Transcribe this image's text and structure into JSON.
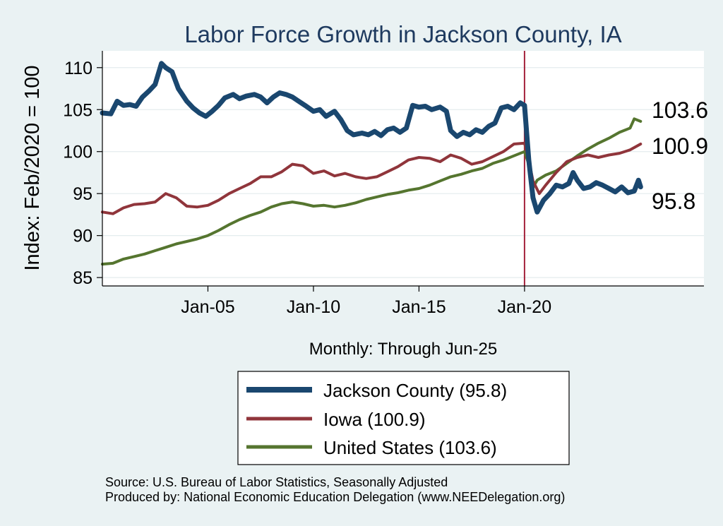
{
  "chart_data": {
    "type": "line",
    "title": "Labor Force Growth in Jackson  County, IA",
    "xlabel": "Monthly: Through Jun-25",
    "ylabel": "Index: Feb/2020 = 100",
    "ylim": [
      84,
      112
    ],
    "yticks": [
      85,
      90,
      95,
      100,
      105,
      110
    ],
    "xlim": [
      "2000-01",
      "2028-06"
    ],
    "xticks": [
      {
        "label": "Jan-05",
        "value": 2005.0
      },
      {
        "label": "Jan-10",
        "value": 2010.0
      },
      {
        "label": "Jan-15",
        "value": 2015.0
      },
      {
        "label": "Jan-20",
        "value": 2020.0
      }
    ],
    "reference_line": {
      "x": 2020.0,
      "color": "#a3203a"
    },
    "grid": true,
    "legend_position": "bottom",
    "series": [
      {
        "name": "Jackson  County",
        "legend_label": "Jackson  County (95.8)",
        "end_label": "95.8",
        "color": "#1a476f",
        "points": [
          [
            2000.0,
            104.6
          ],
          [
            2000.4,
            104.5
          ],
          [
            2000.7,
            106.0
          ],
          [
            2001.0,
            105.5
          ],
          [
            2001.3,
            105.6
          ],
          [
            2001.6,
            105.4
          ],
          [
            2001.9,
            106.5
          ],
          [
            2002.2,
            107.2
          ],
          [
            2002.5,
            108.0
          ],
          [
            2002.8,
            110.5
          ],
          [
            2003.0,
            110.0
          ],
          [
            2003.3,
            109.5
          ],
          [
            2003.6,
            107.5
          ],
          [
            2004.0,
            106.0
          ],
          [
            2004.3,
            105.2
          ],
          [
            2004.6,
            104.6
          ],
          [
            2004.9,
            104.2
          ],
          [
            2005.2,
            104.8
          ],
          [
            2005.5,
            105.5
          ],
          [
            2005.8,
            106.4
          ],
          [
            2006.2,
            106.8
          ],
          [
            2006.5,
            106.3
          ],
          [
            2006.8,
            106.6
          ],
          [
            2007.2,
            106.8
          ],
          [
            2007.5,
            106.5
          ],
          [
            2007.8,
            105.8
          ],
          [
            2008.1,
            106.5
          ],
          [
            2008.4,
            107.0
          ],
          [
            2008.7,
            106.8
          ],
          [
            2009.0,
            106.5
          ],
          [
            2009.3,
            106.0
          ],
          [
            2009.6,
            105.5
          ],
          [
            2010.0,
            104.8
          ],
          [
            2010.3,
            105.0
          ],
          [
            2010.6,
            104.2
          ],
          [
            2011.0,
            104.8
          ],
          [
            2011.3,
            103.8
          ],
          [
            2011.6,
            102.5
          ],
          [
            2011.9,
            102.0
          ],
          [
            2012.3,
            102.2
          ],
          [
            2012.6,
            102.0
          ],
          [
            2012.9,
            102.4
          ],
          [
            2013.2,
            101.9
          ],
          [
            2013.5,
            102.6
          ],
          [
            2013.8,
            102.8
          ],
          [
            2014.1,
            102.3
          ],
          [
            2014.4,
            102.8
          ],
          [
            2014.7,
            105.5
          ],
          [
            2015.0,
            105.3
          ],
          [
            2015.3,
            105.4
          ],
          [
            2015.6,
            105.0
          ],
          [
            2016.0,
            105.3
          ],
          [
            2016.3,
            104.8
          ],
          [
            2016.5,
            102.5
          ],
          [
            2016.8,
            101.8
          ],
          [
            2017.1,
            102.3
          ],
          [
            2017.4,
            102.0
          ],
          [
            2017.7,
            102.6
          ],
          [
            2018.0,
            102.3
          ],
          [
            2018.3,
            103.0
          ],
          [
            2018.6,
            103.4
          ],
          [
            2018.9,
            105.2
          ],
          [
            2019.2,
            105.4
          ],
          [
            2019.5,
            105.0
          ],
          [
            2019.8,
            105.8
          ],
          [
            2020.0,
            105.5
          ],
          [
            2020.2,
            99.0
          ],
          [
            2020.4,
            94.5
          ],
          [
            2020.6,
            92.8
          ],
          [
            2020.9,
            94.2
          ],
          [
            2021.2,
            95.0
          ],
          [
            2021.5,
            96.0
          ],
          [
            2021.8,
            95.8
          ],
          [
            2022.1,
            96.2
          ],
          [
            2022.3,
            97.5
          ],
          [
            2022.5,
            96.6
          ],
          [
            2022.8,
            95.6
          ],
          [
            2023.1,
            95.8
          ],
          [
            2023.4,
            96.3
          ],
          [
            2023.7,
            96.0
          ],
          [
            2024.0,
            95.6
          ],
          [
            2024.3,
            95.2
          ],
          [
            2024.6,
            95.8
          ],
          [
            2024.9,
            95.1
          ],
          [
            2025.2,
            95.3
          ],
          [
            2025.4,
            96.6
          ],
          [
            2025.5,
            95.8
          ]
        ]
      },
      {
        "name": "Iowa",
        "legend_label": "Iowa (100.9)",
        "end_label": "100.9",
        "color": "#90353b",
        "points": [
          [
            2000.0,
            92.8
          ],
          [
            2000.5,
            92.6
          ],
          [
            2001.0,
            93.3
          ],
          [
            2001.5,
            93.7
          ],
          [
            2002.0,
            93.8
          ],
          [
            2002.5,
            94.0
          ],
          [
            2003.0,
            95.0
          ],
          [
            2003.5,
            94.5
          ],
          [
            2004.0,
            93.5
          ],
          [
            2004.5,
            93.4
          ],
          [
            2005.0,
            93.6
          ],
          [
            2005.5,
            94.2
          ],
          [
            2006.0,
            95.0
          ],
          [
            2006.5,
            95.6
          ],
          [
            2007.0,
            96.2
          ],
          [
            2007.5,
            97.0
          ],
          [
            2008.0,
            97.0
          ],
          [
            2008.5,
            97.6
          ],
          [
            2009.0,
            98.5
          ],
          [
            2009.5,
            98.3
          ],
          [
            2010.0,
            97.4
          ],
          [
            2010.5,
            97.7
          ],
          [
            2011.0,
            97.1
          ],
          [
            2011.5,
            97.4
          ],
          [
            2012.0,
            97.0
          ],
          [
            2012.5,
            96.8
          ],
          [
            2013.0,
            97.0
          ],
          [
            2013.5,
            97.6
          ],
          [
            2014.0,
            98.2
          ],
          [
            2014.5,
            99.0
          ],
          [
            2015.0,
            99.3
          ],
          [
            2015.5,
            99.2
          ],
          [
            2016.0,
            98.8
          ],
          [
            2016.5,
            99.6
          ],
          [
            2017.0,
            99.2
          ],
          [
            2017.5,
            98.5
          ],
          [
            2018.0,
            98.8
          ],
          [
            2018.5,
            99.4
          ],
          [
            2019.0,
            100.0
          ],
          [
            2019.5,
            100.9
          ],
          [
            2020.0,
            101.0
          ],
          [
            2020.2,
            99.0
          ],
          [
            2020.4,
            96.5
          ],
          [
            2020.7,
            95.0
          ],
          [
            2021.0,
            96.0
          ],
          [
            2021.5,
            97.5
          ],
          [
            2022.0,
            98.8
          ],
          [
            2022.5,
            99.3
          ],
          [
            2023.0,
            99.6
          ],
          [
            2023.5,
            99.3
          ],
          [
            2024.0,
            99.6
          ],
          [
            2024.5,
            99.8
          ],
          [
            2025.0,
            100.2
          ],
          [
            2025.5,
            100.9
          ]
        ]
      },
      {
        "name": "United States",
        "legend_label": "United States (103.6)",
        "end_label": "103.6",
        "color": "#55752f",
        "points": [
          [
            2000.0,
            86.6
          ],
          [
            2000.5,
            86.7
          ],
          [
            2001.0,
            87.2
          ],
          [
            2001.5,
            87.5
          ],
          [
            2002.0,
            87.8
          ],
          [
            2002.5,
            88.2
          ],
          [
            2003.0,
            88.6
          ],
          [
            2003.5,
            89.0
          ],
          [
            2004.0,
            89.3
          ],
          [
            2004.5,
            89.6
          ],
          [
            2005.0,
            90.0
          ],
          [
            2005.5,
            90.6
          ],
          [
            2006.0,
            91.3
          ],
          [
            2006.5,
            91.9
          ],
          [
            2007.0,
            92.4
          ],
          [
            2007.5,
            92.8
          ],
          [
            2008.0,
            93.4
          ],
          [
            2008.5,
            93.8
          ],
          [
            2009.0,
            94.0
          ],
          [
            2009.5,
            93.8
          ],
          [
            2010.0,
            93.5
          ],
          [
            2010.5,
            93.6
          ],
          [
            2011.0,
            93.4
          ],
          [
            2011.5,
            93.6
          ],
          [
            2012.0,
            93.9
          ],
          [
            2012.5,
            94.3
          ],
          [
            2013.0,
            94.6
          ],
          [
            2013.5,
            94.9
          ],
          [
            2014.0,
            95.1
          ],
          [
            2014.5,
            95.4
          ],
          [
            2015.0,
            95.6
          ],
          [
            2015.5,
            96.0
          ],
          [
            2016.0,
            96.5
          ],
          [
            2016.5,
            97.0
          ],
          [
            2017.0,
            97.3
          ],
          [
            2017.5,
            97.7
          ],
          [
            2018.0,
            98.0
          ],
          [
            2018.5,
            98.6
          ],
          [
            2019.0,
            99.0
          ],
          [
            2019.5,
            99.5
          ],
          [
            2020.0,
            100.0
          ],
          [
            2020.2,
            98.5
          ],
          [
            2020.35,
            95.5
          ],
          [
            2020.6,
            96.6
          ],
          [
            2021.0,
            97.2
          ],
          [
            2021.5,
            97.7
          ],
          [
            2022.0,
            98.6
          ],
          [
            2022.5,
            99.5
          ],
          [
            2023.0,
            100.3
          ],
          [
            2023.5,
            101.0
          ],
          [
            2024.0,
            101.6
          ],
          [
            2024.5,
            102.3
          ],
          [
            2025.0,
            102.8
          ],
          [
            2025.2,
            103.9
          ],
          [
            2025.5,
            103.6
          ]
        ]
      }
    ]
  },
  "source_note": "Source: U.S. Bureau of Labor Statistics, Seasonally Adjusted",
  "producer_note": "Produced by: National Economic Education Delegation (www.NEEDelegation.org)"
}
